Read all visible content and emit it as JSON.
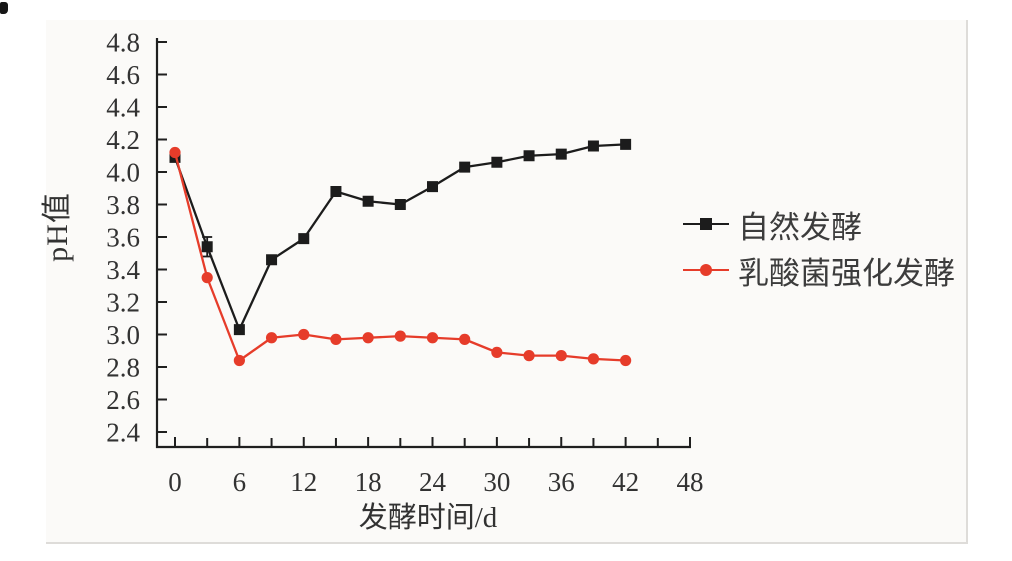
{
  "chart_data": {
    "type": "line",
    "title": "",
    "xlabel": "发酵时间/d",
    "ylabel": "pH值",
    "x": [
      0,
      3,
      6,
      9,
      12,
      15,
      18,
      21,
      24,
      27,
      30,
      33,
      36,
      39,
      42
    ],
    "series": [
      {
        "name": "自然发酵",
        "color": "#1c1c1c",
        "marker": "square",
        "values": [
          4.09,
          3.54,
          3.03,
          3.46,
          3.59,
          3.88,
          3.82,
          3.8,
          3.91,
          4.03,
          4.06,
          4.1,
          4.11,
          4.16,
          4.17
        ]
      },
      {
        "name": "乳酸菌强化发酵",
        "color": "#e63c2a",
        "marker": "circle",
        "values": [
          4.12,
          3.35,
          2.84,
          2.98,
          3.0,
          2.97,
          2.98,
          2.99,
          2.98,
          2.97,
          2.89,
          2.87,
          2.87,
          2.85,
          2.84
        ]
      }
    ],
    "xlim": [
      -1.7,
      48
    ],
    "ylim": [
      2.31,
      4.85
    ],
    "x_major_ticks": [
      0,
      6,
      12,
      18,
      24,
      30,
      36,
      42,
      48
    ],
    "x_minor_ticks": [
      3,
      9,
      15,
      21,
      27,
      33,
      39,
      45
    ],
    "y_ticks": [
      4.8,
      4.6,
      4.4,
      4.2,
      4.0,
      3.8,
      3.6,
      3.4,
      3.2,
      3.0,
      2.8,
      2.6,
      2.4
    ],
    "grid": false,
    "legend_position": "right-center",
    "error_bars": [
      {
        "series": "自然发酵",
        "x": 3,
        "y": 3.54,
        "plus": 0.06,
        "minus": 0.06
      }
    ],
    "axis_color": "#1f1f1f",
    "tick_label_color": "#323232",
    "legend_text_color": "#3c3c3c"
  }
}
